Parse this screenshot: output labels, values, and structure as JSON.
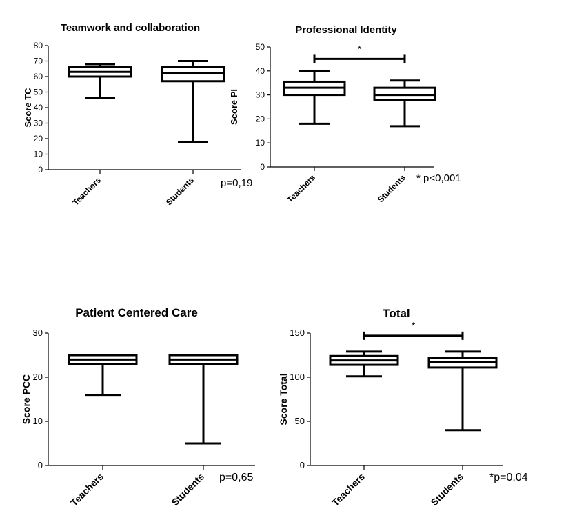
{
  "chart_data": [
    {
      "type": "box",
      "title": "Teamwork and collaboration",
      "ylabel": "Score TC",
      "ylim": [
        0,
        80
      ],
      "yticks": [
        0,
        10,
        20,
        30,
        40,
        50,
        60,
        70,
        80
      ],
      "categories": [
        "Teachers",
        "Students"
      ],
      "boxes": [
        {
          "category": "Teachers",
          "min": 46,
          "q1": 60,
          "median": 63,
          "q3": 66,
          "max": 68
        },
        {
          "category": "Students",
          "min": 18,
          "q1": 57,
          "median": 62,
          "q3": 66,
          "max": 70
        }
      ],
      "significance": null,
      "note": "p=0,19"
    },
    {
      "type": "box",
      "title": "Professional Identity",
      "ylabel": "Score PI",
      "ylim": [
        0,
        50
      ],
      "yticks": [
        0,
        10,
        20,
        30,
        40,
        50
      ],
      "categories": [
        "Teachers",
        "Students"
      ],
      "boxes": [
        {
          "category": "Teachers",
          "min": 18,
          "q1": 30,
          "median": 33,
          "q3": 35.5,
          "max": 40
        },
        {
          "category": "Students",
          "min": 17,
          "q1": 28,
          "median": 30,
          "q3": 33,
          "max": 36
        }
      ],
      "significance": {
        "y": 45,
        "label": "*"
      },
      "note": "* p<0,001"
    },
    {
      "type": "box",
      "title": "Patient Centered Care",
      "ylabel": "Score PCC",
      "ylim": [
        0,
        30
      ],
      "yticks": [
        0,
        10,
        20,
        30
      ],
      "categories": [
        "Teachers",
        "Students"
      ],
      "boxes": [
        {
          "category": "Teachers",
          "min": 16,
          "q1": 23,
          "median": 24,
          "q3": 25,
          "max": 25
        },
        {
          "category": "Students",
          "min": 5,
          "q1": 23,
          "median": 24,
          "q3": 25,
          "max": 25
        }
      ],
      "significance": null,
      "note": "p=0,65"
    },
    {
      "type": "box",
      "title": "Total",
      "ylabel": "Score Total",
      "ylim": [
        0,
        150
      ],
      "yticks": [
        0,
        50,
        100,
        150
      ],
      "categories": [
        "Teachers",
        "Students"
      ],
      "boxes": [
        {
          "category": "Teachers",
          "min": 101,
          "q1": 114,
          "median": 119,
          "q3": 124,
          "max": 129
        },
        {
          "category": "Students",
          "min": 40,
          "q1": 111,
          "median": 117,
          "q3": 122,
          "max": 129
        }
      ],
      "significance": {
        "y": 147,
        "label": "*"
      },
      "note": "*p=0,04"
    }
  ]
}
